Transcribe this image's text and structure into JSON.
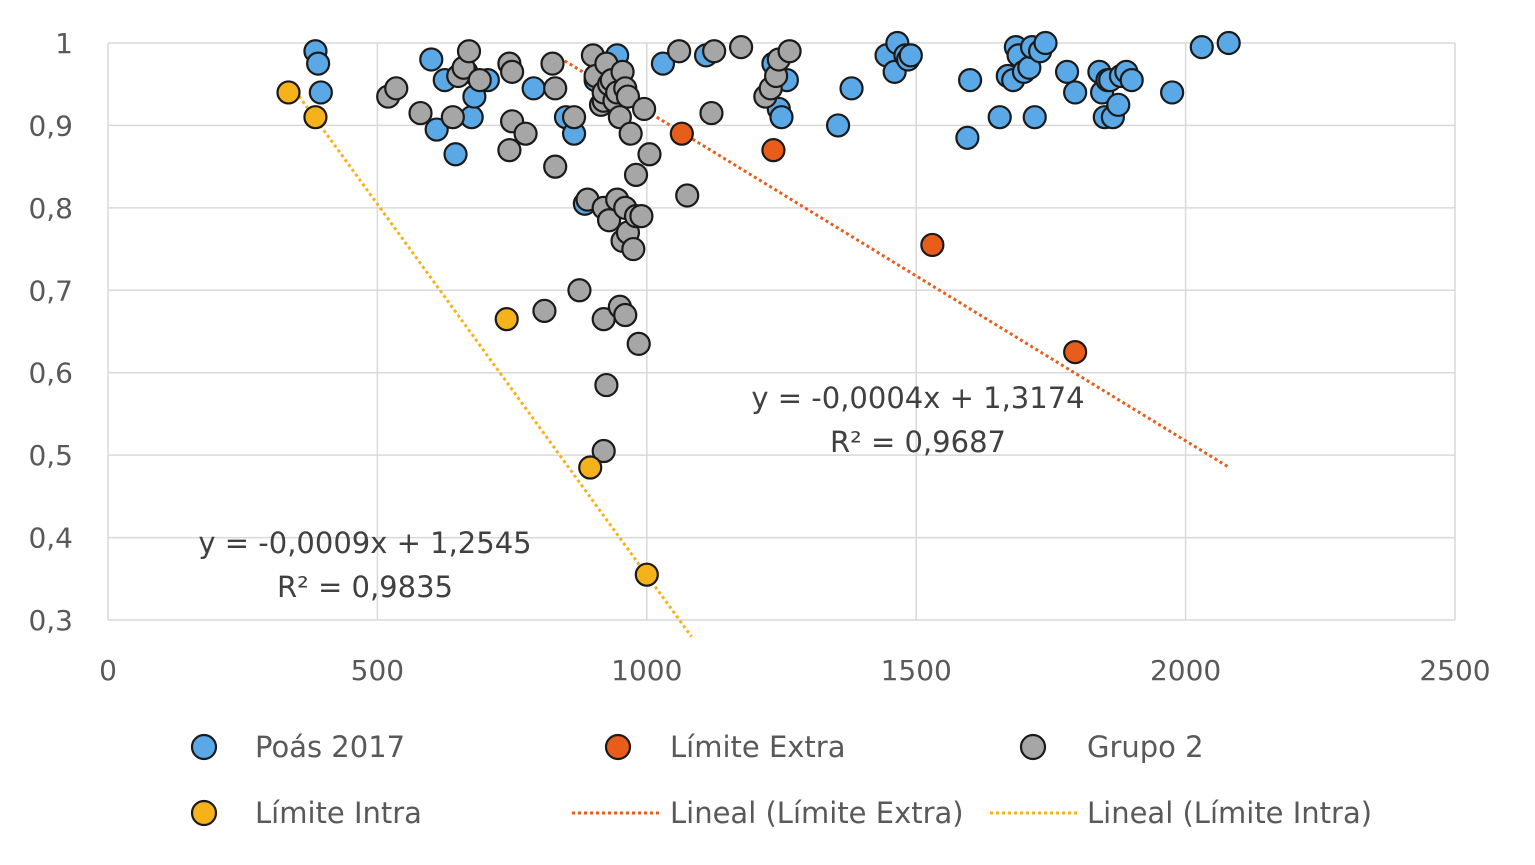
{
  "colors": {
    "poas": "#5aa9e6",
    "extra": "#e85d1a",
    "grupo": "#a6a6a6",
    "intra": "#f5b21a",
    "grid": "#d9d9d9"
  },
  "chart_data": {
    "type": "scatter",
    "xlim": [
      0,
      2500
    ],
    "ylim": [
      0.3,
      1
    ],
    "xticks": [
      0,
      500,
      1000,
      1500,
      2000,
      2500
    ],
    "xtick_labels": [
      "0",
      "500",
      "1000",
      "1500",
      "2000",
      "2500"
    ],
    "yticks": [
      0.3,
      0.4,
      0.5,
      0.6,
      0.7,
      0.8,
      0.9,
      1
    ],
    "ytick_labels": [
      "0,3",
      "0,4",
      "0,5",
      "0,6",
      "0,7",
      "0,8",
      "0,9",
      "1"
    ],
    "grid": true,
    "legend_position": "bottom",
    "series": [
      {
        "name": "Poás 2017",
        "color_key": "poas",
        "points": [
          [
            385,
            0.99
          ],
          [
            390,
            0.975
          ],
          [
            395,
            0.94
          ],
          [
            600,
            0.98
          ],
          [
            610,
            0.895
          ],
          [
            625,
            0.955
          ],
          [
            645,
            0.865
          ],
          [
            665,
            0.965
          ],
          [
            675,
            0.91
          ],
          [
            680,
            0.935
          ],
          [
            705,
            0.955
          ],
          [
            790,
            0.945
          ],
          [
            850,
            0.91
          ],
          [
            865,
            0.89
          ],
          [
            885,
            0.805
          ],
          [
            905,
            0.955
          ],
          [
            945,
            0.985
          ],
          [
            1030,
            0.975
          ],
          [
            1110,
            0.985
          ],
          [
            1235,
            0.975
          ],
          [
            1245,
            0.92
          ],
          [
            1250,
            0.91
          ],
          [
            1260,
            0.955
          ],
          [
            1355,
            0.9
          ],
          [
            1380,
            0.945
          ],
          [
            1445,
            0.985
          ],
          [
            1460,
            0.965
          ],
          [
            1465,
            1.0
          ],
          [
            1480,
            0.985
          ],
          [
            1485,
            0.98
          ],
          [
            1490,
            0.985
          ],
          [
            1595,
            0.885
          ],
          [
            1600,
            0.955
          ],
          [
            1655,
            0.91
          ],
          [
            1670,
            0.96
          ],
          [
            1680,
            0.955
          ],
          [
            1685,
            0.995
          ],
          [
            1690,
            0.985
          ],
          [
            1700,
            0.965
          ],
          [
            1710,
            0.97
          ],
          [
            1715,
            0.995
          ],
          [
            1720,
            0.91
          ],
          [
            1730,
            0.99
          ],
          [
            1740,
            1.0
          ],
          [
            1780,
            0.965
          ],
          [
            1795,
            0.94
          ],
          [
            1840,
            0.965
          ],
          [
            1845,
            0.94
          ],
          [
            1850,
            0.91
          ],
          [
            1855,
            0.955
          ],
          [
            1860,
            0.955
          ],
          [
            1865,
            0.91
          ],
          [
            1875,
            0.925
          ],
          [
            1880,
            0.96
          ],
          [
            1890,
            0.965
          ],
          [
            1900,
            0.955
          ],
          [
            1975,
            0.94
          ],
          [
            2030,
            0.995
          ],
          [
            2080,
            1.0
          ]
        ]
      },
      {
        "name": "Límite Extra",
        "color_key": "extra",
        "points": [
          [
            1065,
            0.89
          ],
          [
            1235,
            0.87
          ],
          [
            1530,
            0.755
          ],
          [
            1795,
            0.625
          ]
        ]
      },
      {
        "name": "Grupo 2",
        "color_key": "grupo",
        "points": [
          [
            520,
            0.935
          ],
          [
            535,
            0.945
          ],
          [
            580,
            0.915
          ],
          [
            640,
            0.91
          ],
          [
            650,
            0.96
          ],
          [
            660,
            0.97
          ],
          [
            670,
            0.99
          ],
          [
            690,
            0.955
          ],
          [
            745,
            0.975
          ],
          [
            750,
            0.965
          ],
          [
            750,
            0.905
          ],
          [
            745,
            0.87
          ],
          [
            775,
            0.89
          ],
          [
            825,
            0.975
          ],
          [
            830,
            0.945
          ],
          [
            830,
            0.85
          ],
          [
            865,
            0.91
          ],
          [
            875,
            0.7
          ],
          [
            810,
            0.675
          ],
          [
            890,
            0.81
          ],
          [
            900,
            0.985
          ],
          [
            905,
            0.96
          ],
          [
            915,
            0.925
          ],
          [
            920,
            0.93
          ],
          [
            920,
            0.94
          ],
          [
            925,
            0.975
          ],
          [
            930,
            0.95
          ],
          [
            935,
            0.955
          ],
          [
            940,
            0.93
          ],
          [
            945,
            0.94
          ],
          [
            950,
            0.91
          ],
          [
            955,
            0.965
          ],
          [
            960,
            0.945
          ],
          [
            965,
            0.935
          ],
          [
            970,
            0.89
          ],
          [
            980,
            0.84
          ],
          [
            995,
            0.92
          ],
          [
            1005,
            0.865
          ],
          [
            920,
            0.8
          ],
          [
            930,
            0.785
          ],
          [
            945,
            0.81
          ],
          [
            955,
            0.76
          ],
          [
            960,
            0.8
          ],
          [
            965,
            0.77
          ],
          [
            975,
            0.75
          ],
          [
            980,
            0.79
          ],
          [
            990,
            0.79
          ],
          [
            920,
            0.665
          ],
          [
            950,
            0.68
          ],
          [
            960,
            0.67
          ],
          [
            985,
            0.635
          ],
          [
            925,
            0.585
          ],
          [
            920,
            0.505
          ],
          [
            1060,
            0.99
          ],
          [
            1075,
            0.815
          ],
          [
            1120,
            0.915
          ],
          [
            1125,
            0.99
          ],
          [
            1175,
            0.995
          ],
          [
            1220,
            0.935
          ],
          [
            1230,
            0.945
          ],
          [
            1240,
            0.96
          ],
          [
            1245,
            0.98
          ],
          [
            1265,
            0.99
          ]
        ]
      },
      {
        "name": "Límite Intra",
        "color_key": "intra",
        "points": [
          [
            335,
            0.94
          ],
          [
            385,
            0.91
          ],
          [
            740,
            0.665
          ],
          [
            895,
            0.485
          ],
          [
            1000,
            0.355
          ]
        ]
      }
    ],
    "trendlines": [
      {
        "name": "Lineal (Límite Extra)",
        "color_key": "extra",
        "slope": -0.0004,
        "intercept": 1.3174,
        "x_range": [
          838,
          2080
        ],
        "equation": "y = -0,0004x + 1,3174",
        "r2": "R² = 0,9687"
      },
      {
        "name": "Lineal (Límite Intra)",
        "color_key": "intra",
        "slope": -0.0009,
        "intercept": 1.2545,
        "x_range": [
          335,
          1083
        ],
        "equation": "y = -0,0009x + 1,2545",
        "r2": "R² = 0,9835"
      }
    ],
    "legend": [
      {
        "label": "Poás 2017",
        "kind": "marker",
        "color_key": "poas"
      },
      {
        "label": "Límite Extra",
        "kind": "marker",
        "color_key": "extra"
      },
      {
        "label": "Grupo 2",
        "kind": "marker",
        "color_key": "grupo"
      },
      {
        "label": "Límite Intra",
        "kind": "marker",
        "color_key": "intra"
      },
      {
        "label": "Lineal (Límite Extra)",
        "kind": "line",
        "color_key": "extra"
      },
      {
        "label": "Lineal (Límite Intra)",
        "kind": "line",
        "color_key": "intra"
      }
    ]
  }
}
